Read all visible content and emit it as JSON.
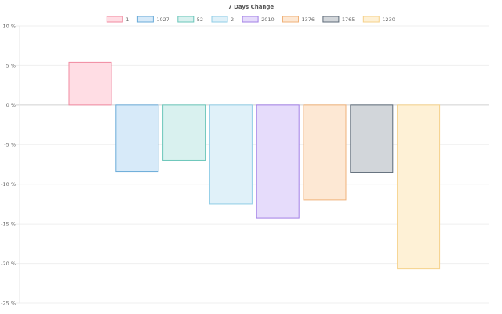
{
  "chart_data": {
    "type": "bar",
    "title": "7 Days Change",
    "xlabel": "",
    "ylabel": "",
    "ylim": [
      -25,
      10
    ],
    "y_ticks": [
      10,
      5,
      0,
      -5,
      -10,
      -15,
      -20,
      -25
    ],
    "y_tick_labels": [
      "10 %",
      "5 %",
      "0 %",
      "-5 %",
      "-10 %",
      "-15 %",
      "-20 %",
      "-25 %"
    ],
    "grid": true,
    "legend_position": "top",
    "series": [
      {
        "name": "1",
        "value": 5.4,
        "fill": "#ffdde4",
        "stroke": "#f08aa0"
      },
      {
        "name": "1027",
        "value": -8.4,
        "fill": "#d7eaf9",
        "stroke": "#69abd8"
      },
      {
        "name": "52",
        "value": -7.0,
        "fill": "#d9f1ef",
        "stroke": "#6ac6ba"
      },
      {
        "name": "2",
        "value": -12.5,
        "fill": "#e0f1f9",
        "stroke": "#8fcde6"
      },
      {
        "name": "2010",
        "value": -14.3,
        "fill": "#e6dcfb",
        "stroke": "#a27fe6"
      },
      {
        "name": "1376",
        "value": -12.0,
        "fill": "#fde8d4",
        "stroke": "#f0b27a"
      },
      {
        "name": "1765",
        "value": -8.5,
        "fill": "#d2d6da",
        "stroke": "#5e6b78"
      },
      {
        "name": "1230",
        "value": -20.7,
        "fill": "#fef1d6",
        "stroke": "#f5d18a"
      }
    ]
  }
}
